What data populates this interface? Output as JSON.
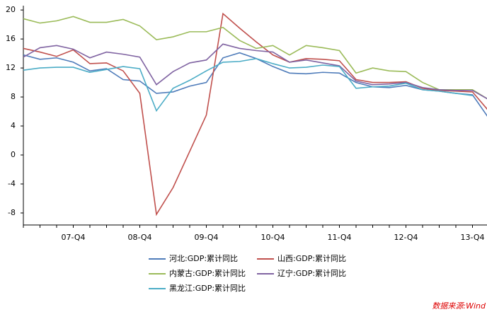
{
  "chart_data": {
    "type": "line",
    "categories": [
      null,
      null,
      null,
      "07-Q4",
      null,
      null,
      null,
      "08-Q4",
      null,
      null,
      null,
      "09-Q4",
      null,
      null,
      null,
      "10-Q4",
      null,
      null,
      null,
      "11-Q4",
      null,
      null,
      null,
      "12-Q4",
      null,
      null,
      null,
      "13-Q4",
      null
    ],
    "ylim": [
      -9.66,
      20.6
    ],
    "yticks": [
      -8,
      -4,
      0,
      4,
      8,
      12,
      16,
      20
    ],
    "series": [
      {
        "name": "河北:GDP:累计同比",
        "color": "#4f7cba",
        "values": [
          13.8,
          13.2,
          13.4,
          12.8,
          11.6,
          11.9,
          10.4,
          10.2,
          8.5,
          8.7,
          9.5,
          10.0,
          13.4,
          14.1,
          13.3,
          12.2,
          11.3,
          11.2,
          11.4,
          11.3,
          10.0,
          9.4,
          9.3,
          9.6,
          9.0,
          8.8,
          8.5,
          8.3,
          5.0
        ]
      },
      {
        "name": "山西:GDP:累计同比",
        "color": "#c0504d",
        "values": [
          14.7,
          14.2,
          13.6,
          14.5,
          12.6,
          12.7,
          11.6,
          8.5,
          -8.2,
          -4.5,
          0.5,
          5.5,
          19.5,
          17.5,
          15.6,
          13.8,
          12.8,
          13.3,
          13.2,
          13.0,
          10.4,
          10.0,
          10.0,
          10.1,
          9.2,
          8.9,
          8.8,
          8.7,
          6.0
        ]
      },
      {
        "name": "内蒙古:GDP:累计同比",
        "color": "#9bbb59",
        "values": [
          18.8,
          18.2,
          18.5,
          19.1,
          18.3,
          18.3,
          18.7,
          17.8,
          15.9,
          16.3,
          17.0,
          17.0,
          17.6,
          15.8,
          14.7,
          15.1,
          13.8,
          15.1,
          14.8,
          14.4,
          11.3,
          12.0,
          11.6,
          11.5,
          10.0,
          9.0,
          9.0,
          9.0,
          7.6
        ]
      },
      {
        "name": "辽宁:GDP:累计同比",
        "color": "#8064a2",
        "values": [
          13.5,
          14.8,
          15.1,
          14.6,
          13.4,
          14.2,
          13.9,
          13.5,
          9.7,
          11.5,
          12.7,
          13.1,
          15.3,
          14.7,
          14.4,
          14.2,
          12.8,
          13.1,
          12.7,
          12.3,
          10.2,
          9.7,
          9.8,
          10.0,
          9.3,
          9.0,
          8.9,
          8.9,
          7.6
        ]
      },
      {
        "name": "黑龙江:GDP:累计同比",
        "color": "#4bacc6",
        "values": [
          11.7,
          12.0,
          12.1,
          12.1,
          11.4,
          11.8,
          12.2,
          11.9,
          6.1,
          9.2,
          10.3,
          11.6,
          12.8,
          12.9,
          13.3,
          12.6,
          12.0,
          12.1,
          12.4,
          12.2,
          9.2,
          9.4,
          9.5,
          9.9,
          9.0,
          8.8,
          8.5,
          8.2,
          null
        ]
      }
    ],
    "source": "数据来源:Wind"
  }
}
